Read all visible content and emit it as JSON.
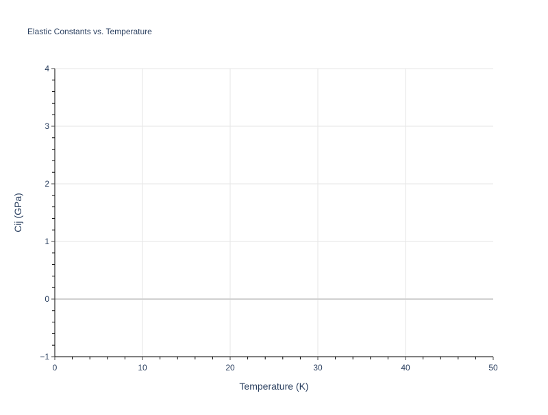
{
  "chart_data": {
    "type": "scatter",
    "title": "Elastic Constants vs. Temperature",
    "xlabel": "Temperature (K)",
    "ylabel": "Cij (GPa)",
    "xlim": [
      0,
      50
    ],
    "ylim": [
      -1,
      4
    ],
    "xticks": [
      "0",
      "10",
      "20",
      "30",
      "40",
      "50"
    ],
    "yticks": [
      "−1",
      "0",
      "1",
      "2",
      "3",
      "4"
    ],
    "grid": true,
    "series": [],
    "colors": {
      "text": "#2a3f5f",
      "grid": "#e5e5e5",
      "zeroline": "#d0d0d0",
      "axis": "#000000"
    }
  }
}
